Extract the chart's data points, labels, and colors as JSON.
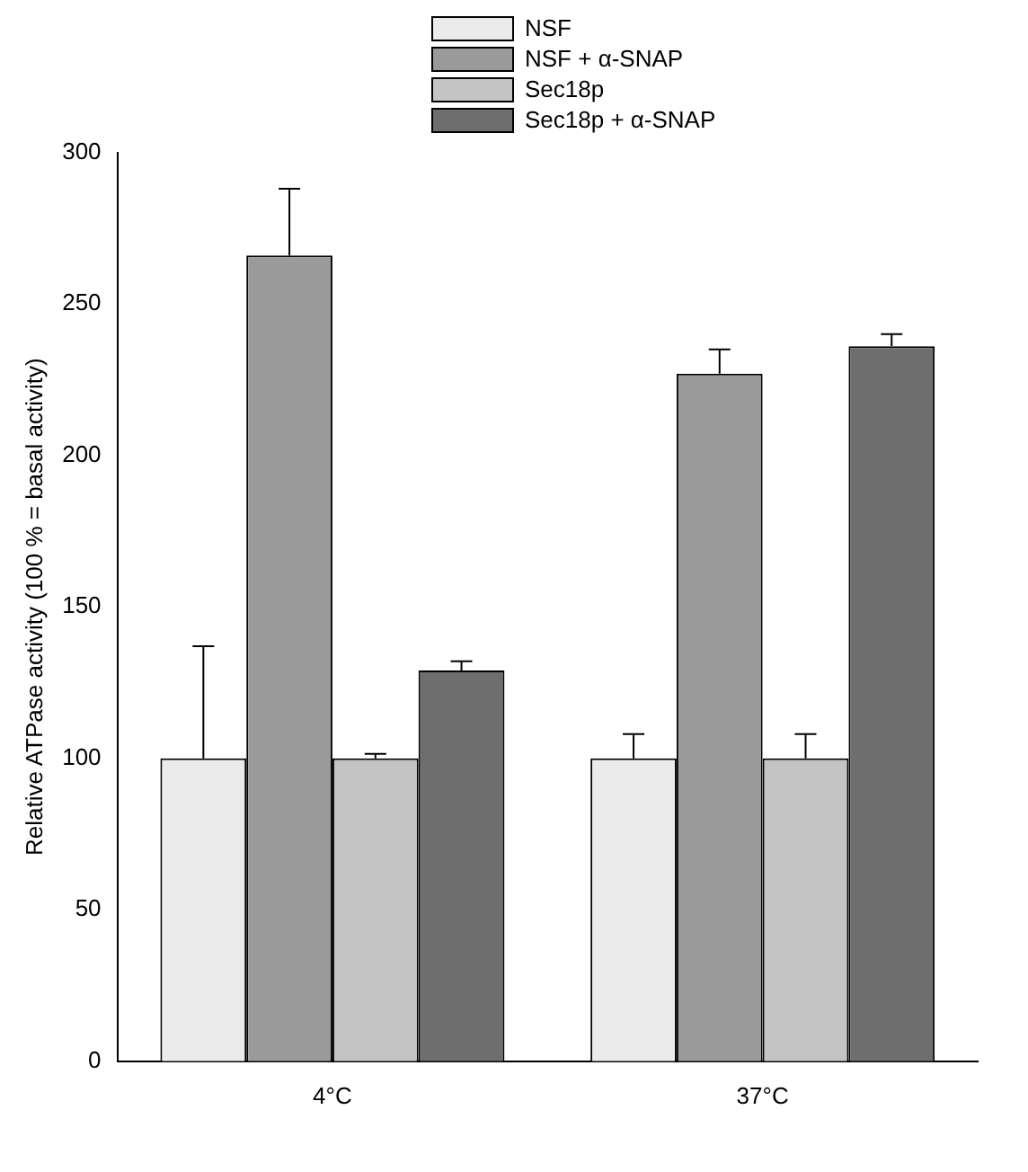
{
  "chart_data": {
    "type": "bar",
    "ylabel": "Relative ATPase activity (100 % = basal activity)",
    "categories": [
      "4°C",
      "37°C"
    ],
    "series": [
      {
        "name": "NSF",
        "color": "#ebebeb",
        "values": [
          100,
          100
        ],
        "errors": [
          [
            100,
            137
          ],
          [
            100,
            108
          ]
        ]
      },
      {
        "name": "NSF + α-SNAP",
        "color": "#9a9a9a",
        "values": [
          266,
          227
        ],
        "errors": [
          [
            266,
            288
          ],
          [
            227,
            235
          ]
        ]
      },
      {
        "name": "Sec18p",
        "color": "#c4c4c4",
        "values": [
          100,
          100
        ],
        "errors": [
          [
            100,
            101.5
          ],
          [
            100,
            108
          ]
        ]
      },
      {
        "name": "Sec18p + α-SNAP",
        "color": "#6e6e6e",
        "values": [
          129,
          236
        ],
        "errors": [
          [
            129,
            132
          ],
          [
            236,
            240
          ]
        ]
      }
    ],
    "ylim": [
      0,
      300
    ],
    "yticks": [
      0,
      50,
      100,
      150,
      200,
      250,
      300
    ],
    "grid": false,
    "legend": "top"
  }
}
